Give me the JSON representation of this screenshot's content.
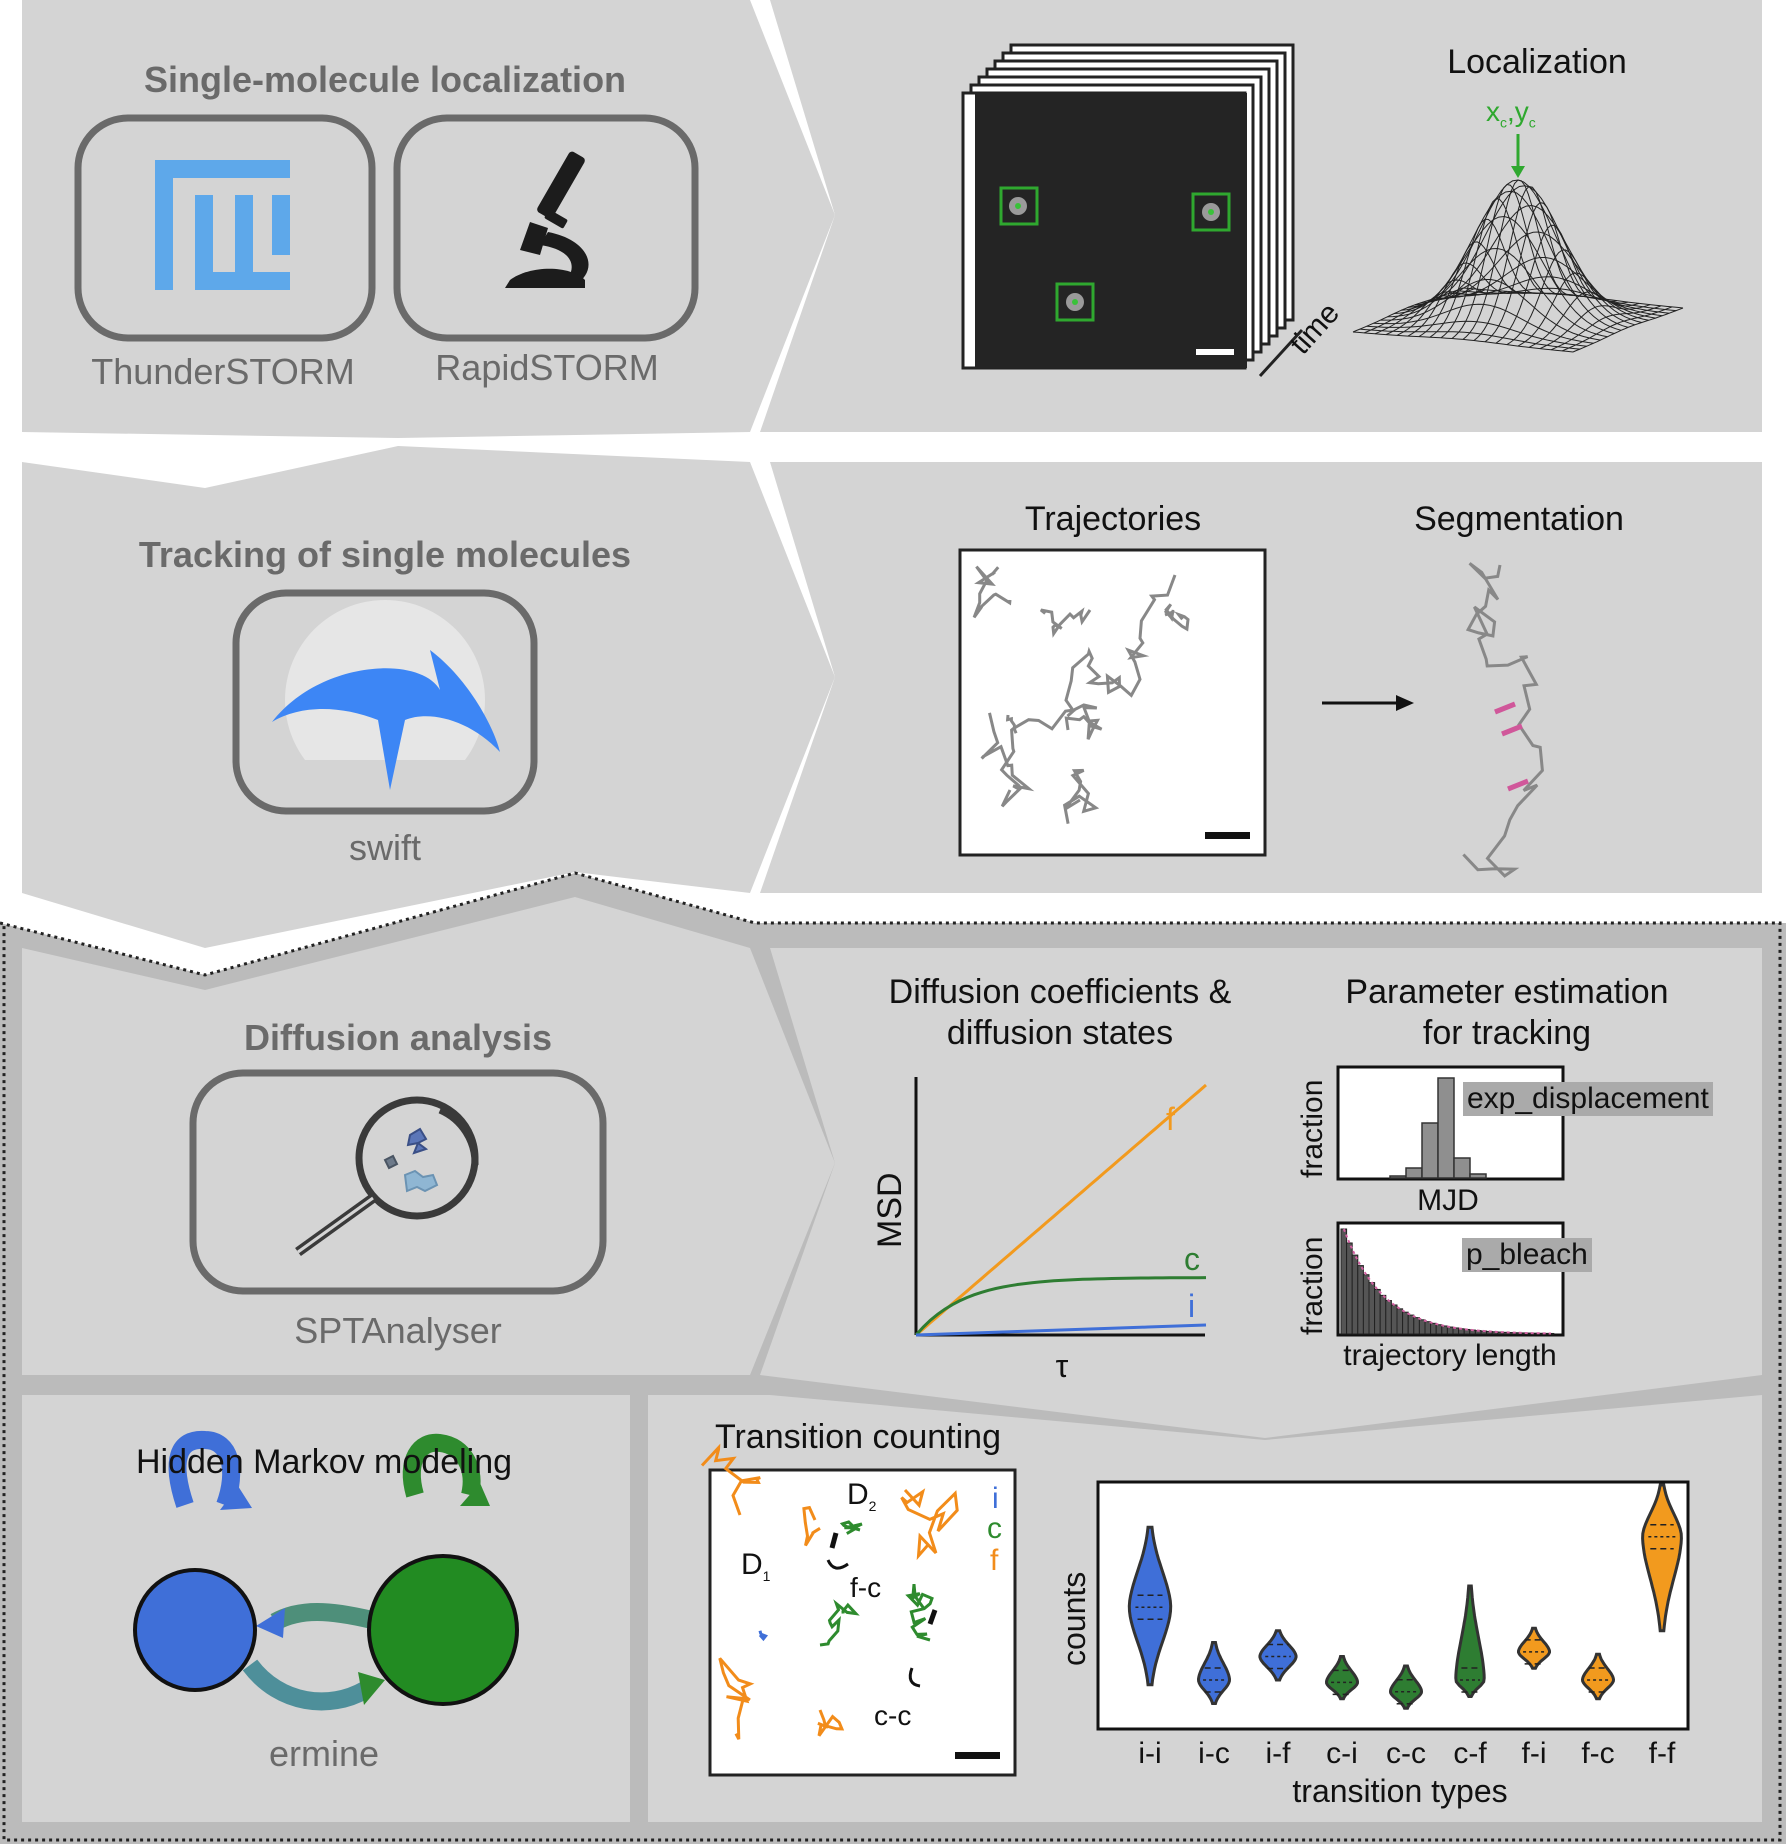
{
  "sections": {
    "localization": {
      "title": "Single-molecule localization",
      "tools": [
        "ThunderSTORM",
        "RapidSTORM"
      ],
      "panel_title": "Localization",
      "centroid_label": "x",
      "centroid_label_sub": "c",
      "centroid_label_y": "y",
      "centroid_label_y_sub": "c",
      "stack_axis": "time"
    },
    "tracking": {
      "title": "Tracking of single molecules",
      "tool": "swift",
      "panel_left_title": "Trajectories",
      "panel_right_title": "Segmentation"
    },
    "diffusion": {
      "title": "Diffusion analysis",
      "tool": "SPTAnalyser",
      "msd_title_line1": "Diffusion coefficients &",
      "msd_title_line2": "diffusion states",
      "param_title_line1": "Parameter estimation",
      "param_title_line2": "for tracking"
    },
    "hmm": {
      "title": "Hidden Markov modeling",
      "tool": "ermine"
    },
    "transitions": {
      "title": "Transition counting",
      "d1": "D",
      "d1_sub": "1",
      "d2": "D",
      "d2_sub": "2",
      "fc": "f-c",
      "cc": "c-c",
      "legend": [
        {
          "label": "i",
          "color": "#3f6fd8"
        },
        {
          "label": "c",
          "color": "#2e8b2e"
        },
        {
          "label": "f",
          "color": "#f28c1a"
        }
      ]
    }
  },
  "chart_data": [
    {
      "type": "line",
      "xlabel": "τ",
      "ylabel": "MSD",
      "series": [
        {
          "name": "f",
          "color": "#f29a1e",
          "shape": "linear",
          "values": [
            0,
            0.25,
            0.5,
            0.75,
            1.0
          ]
        },
        {
          "name": "c",
          "color": "#2e7d32",
          "shape": "confined",
          "values": [
            0,
            0.17,
            0.22,
            0.23,
            0.23
          ]
        },
        {
          "name": "i",
          "color": "#3f6fd8",
          "shape": "immobile",
          "values": [
            0,
            0.01,
            0.02,
            0.03,
            0.04
          ]
        }
      ]
    },
    {
      "type": "bar",
      "xlabel": "MJD",
      "ylabel": "fraction",
      "annotation": "exp_displacement",
      "values": [
        0.02,
        0.1,
        0.55,
        1.0,
        0.2,
        0.04
      ]
    },
    {
      "type": "bar",
      "xlabel": "trajectory length",
      "ylabel": "fraction",
      "annotation": "p_bleach",
      "fit": "exponential"
    },
    {
      "type": "violin",
      "xlabel": "transition types",
      "ylabel": "counts",
      "categories": [
        "i-i",
        "i-c",
        "i-f",
        "c-i",
        "c-c",
        "c-f",
        "f-i",
        "f-c",
        "f-f"
      ],
      "colors": [
        "#3f6fd8",
        "#3f6fd8",
        "#3f6fd8",
        "#2e7d32",
        "#2e7d32",
        "#2e7d32",
        "#f29a1e",
        "#f29a1e",
        "#f29a1e"
      ],
      "medians": [
        0.48,
        0.17,
        0.27,
        0.16,
        0.12,
        0.17,
        0.29,
        0.17,
        0.78
      ],
      "lows": [
        0.15,
        0.07,
        0.17,
        0.09,
        0.05,
        0.1,
        0.22,
        0.09,
        0.38
      ],
      "highs": [
        0.82,
        0.33,
        0.38,
        0.27,
        0.23,
        0.57,
        0.39,
        0.28,
        1.0
      ],
      "widths": [
        0.8,
        0.6,
        0.7,
        0.6,
        0.6,
        0.55,
        0.6,
        0.6,
        0.75
      ]
    }
  ]
}
